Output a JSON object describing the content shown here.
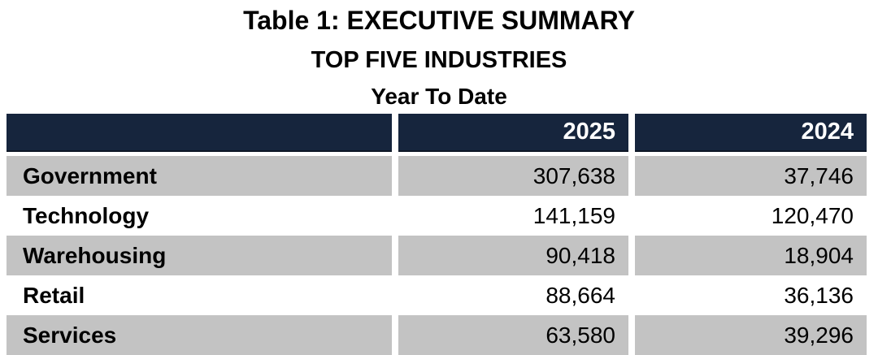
{
  "titles": {
    "main": "Table 1: EXECUTIVE SUMMARY",
    "subtitle": "TOP FIVE INDUSTRIES",
    "period": "Year To Date"
  },
  "table": {
    "columns": [
      "",
      "2025",
      "2024"
    ],
    "rows": [
      {
        "label": "Government",
        "y2025": "307,638",
        "y2024": "37,746"
      },
      {
        "label": "Technology",
        "y2025": "141,159",
        "y2024": "120,470"
      },
      {
        "label": "Warehousing",
        "y2025": "90,418",
        "y2024": "18,904"
      },
      {
        "label": "Retail",
        "y2025": "88,664",
        "y2024": "36,136"
      },
      {
        "label": "Services",
        "y2025": "63,580",
        "y2024": "39,296"
      }
    ]
  },
  "colors": {
    "header_bg": "#16253D",
    "header_border": "#0E1726",
    "header_text": "#FFFFFF",
    "row_alt_bg": "#C3C3C3",
    "row_bg": "#FFFFFF",
    "text": "#000000"
  }
}
